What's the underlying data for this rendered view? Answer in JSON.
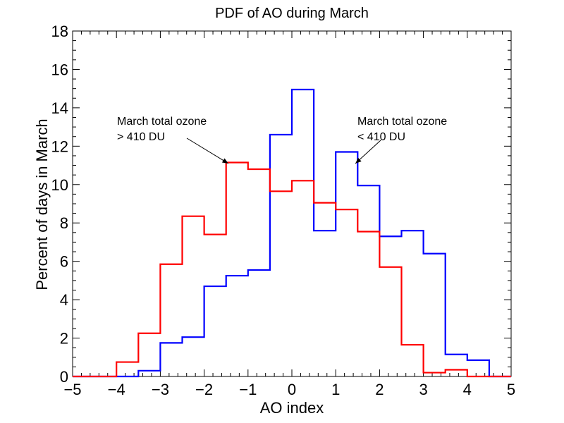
{
  "chart_data": {
    "type": "line",
    "title": "PDF of AO during March",
    "xlabel": "AO index",
    "ylabel": "Percent of days in March",
    "xlim": [
      -5,
      5
    ],
    "ylim": [
      0,
      18
    ],
    "xticks": [
      "-5",
      "-4",
      "-3",
      "-2",
      "-1",
      "0",
      "1",
      "2",
      "3",
      "4",
      "5"
    ],
    "yticks": [
      "0",
      "2",
      "4",
      "6",
      "8",
      "10",
      "12",
      "14",
      "16",
      "18"
    ],
    "grid": false,
    "bin_edges": [
      -5.0,
      -4.5,
      -4.0,
      -3.5,
      -3.0,
      -2.5,
      -2.0,
      -1.5,
      -1.0,
      -0.5,
      0.0,
      0.5,
      1.0,
      1.5,
      2.0,
      2.5,
      3.0,
      3.5,
      4.0,
      4.5,
      5.0
    ],
    "series": [
      {
        "color": "#0000ff",
        "values": [
          0,
          0,
          0,
          0.3,
          1.75,
          2.05,
          4.7,
          5.25,
          5.55,
          12.6,
          14.95,
          7.6,
          11.7,
          9.95,
          7.3,
          7.6,
          6.4,
          1.15,
          0.85,
          0,
          0
        ]
      },
      {
        "color": "#ff0000",
        "values": [
          0,
          0,
          0.75,
          2.25,
          5.85,
          8.35,
          7.4,
          11.15,
          10.8,
          9.65,
          10.2,
          9.05,
          8.7,
          7.55,
          5.7,
          1.65,
          0.2,
          0.35,
          0,
          0,
          0
        ]
      }
    ],
    "annotations": [
      {
        "lines": [
          "March total ozone",
          "> 410 DU"
        ],
        "arrow_to": [
          -1.45,
          11.1
        ]
      },
      {
        "lines": [
          "March total ozone",
          "< 410 DU"
        ],
        "arrow_to": [
          1.45,
          11.1
        ]
      }
    ]
  }
}
